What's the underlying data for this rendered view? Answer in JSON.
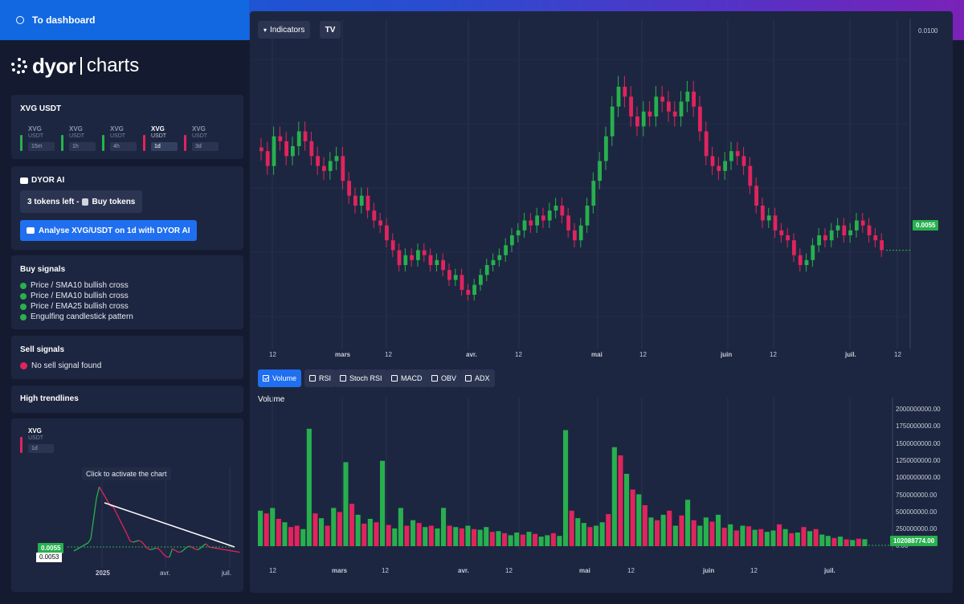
{
  "topbar": {
    "dashboard_label": "To dashboard"
  },
  "logo": {
    "brand": "dyor",
    "sub": "charts"
  },
  "pair_card": {
    "title": "XVG USDT",
    "timeframes": [
      {
        "symbol": "XVG",
        "quote": "USDT",
        "label": "15m",
        "color": "#2ab04f",
        "active": false
      },
      {
        "symbol": "XVG",
        "quote": "USDT",
        "label": "1h",
        "color": "#2ab04f",
        "active": false
      },
      {
        "symbol": "XVG",
        "quote": "USDT",
        "label": "4h",
        "color": "#2ab04f",
        "active": false
      },
      {
        "symbol": "XVG",
        "quote": "USDT",
        "label": "1d",
        "color": "#e0245e",
        "active": true
      },
      {
        "symbol": "XVG",
        "quote": "USDT",
        "label": "3d",
        "color": "#e0245e",
        "active": false
      }
    ]
  },
  "ai_card": {
    "title": "DYOR AI",
    "tokens_label": "3 tokens left -",
    "buy_tokens_label": "Buy tokens",
    "analyse_label": "Analyse XVG/USDT on 1d with DYOR AI"
  },
  "buy_signals": {
    "title": "Buy signals",
    "items": [
      "Price / SMA10 bullish cross",
      "Price / EMA10 bullish cross",
      "Price / EMA25 bullish cross",
      "Engulfing candlestick pattern"
    ]
  },
  "sell_signals": {
    "title": "Sell signals",
    "items": [
      "No sell signal found"
    ]
  },
  "trendlines": {
    "title": "High trendlines"
  },
  "mini_chart": {
    "symbol": "XVG",
    "quote": "USDT",
    "timeframe": "1d",
    "tooltip": "Click to activate the chart",
    "price_label": "0.0055",
    "low_label": "0.0053",
    "x_labels": [
      "2025",
      "avr.",
      "juil."
    ]
  },
  "toolbar": {
    "indicators_label": "Indicators",
    "tv_logo": "TV"
  },
  "price_chart": {
    "last_price_label": "0.0055",
    "top_price_label": "0.0100",
    "x_labels": [
      "12",
      "mars",
      "12",
      "avr.",
      "12",
      "mai",
      "12",
      "juin",
      "12",
      "juil.",
      "12"
    ]
  },
  "indicator_toggles": [
    {
      "label": "Volume",
      "checked": true
    },
    {
      "label": "RSI",
      "checked": false
    },
    {
      "label": "Stoch RSI",
      "checked": false
    },
    {
      "label": "MACD",
      "checked": false
    },
    {
      "label": "OBV",
      "checked": false
    },
    {
      "label": "ADX",
      "checked": false
    }
  ],
  "volume_chart": {
    "title": "Volume",
    "y_labels": [
      "2000000000.00",
      "1750000000.00",
      "1500000000.00",
      "1250000000.00",
      "1000000000.00",
      "750000000.00",
      "500000000.00",
      "250000000.00",
      "0.00"
    ],
    "last_volume_label": "102088774.00",
    "x_labels": [
      "12",
      "mars",
      "12",
      "avr.",
      "12",
      "mai",
      "12",
      "juin",
      "12",
      "juil."
    ]
  },
  "colors": {
    "up": "#27b04e",
    "down": "#e0245e",
    "accent": "#1f6ff0",
    "panel": "#1d2640"
  },
  "chart_data": [
    {
      "type": "candlestick",
      "title": "",
      "x_labels": [
        "12",
        "mars",
        "12",
        "avr.",
        "12",
        "mai",
        "12",
        "juin",
        "12",
        "juil.",
        "12"
      ],
      "y_labels": [
        "0.0100",
        "0.0055"
      ],
      "close": [
        0.0075,
        0.0072,
        0.0078,
        0.0077,
        0.0074,
        0.0076,
        0.0079,
        0.0077,
        0.0074,
        0.0072,
        0.0071,
        0.0073,
        0.0074,
        0.0069,
        0.0066,
        0.0064,
        0.0066,
        0.0063,
        0.0061,
        0.006,
        0.0057,
        0.0055,
        0.0052,
        0.0054,
        0.0053,
        0.0055,
        0.0054,
        0.0052,
        0.0053,
        0.0051,
        0.0049,
        0.005,
        0.0047,
        0.0046,
        0.0048,
        0.005,
        0.0052,
        0.0053,
        0.0054,
        0.0056,
        0.0058,
        0.0059,
        0.0061,
        0.006,
        0.0062,
        0.0061,
        0.0063,
        0.0064,
        0.0062,
        0.0059,
        0.0057,
        0.006,
        0.0064,
        0.0069,
        0.0073,
        0.0078,
        0.0084,
        0.0088,
        0.0086,
        0.0082,
        0.008,
        0.0083,
        0.0082,
        0.0086,
        0.0085,
        0.0083,
        0.0082,
        0.0085,
        0.0087,
        0.0084,
        0.0079,
        0.0074,
        0.0072,
        0.0071,
        0.0073,
        0.0075,
        0.0074,
        0.0072,
        0.0068,
        0.0064,
        0.0061,
        0.0062,
        0.0059,
        0.0058,
        0.0057,
        0.0054,
        0.0052,
        0.0053,
        0.0056,
        0.0058,
        0.0057,
        0.0059,
        0.006,
        0.0058,
        0.0059,
        0.0061,
        0.006,
        0.0058,
        0.0057,
        0.0055
      ]
    },
    {
      "type": "bar",
      "title": "Volume",
      "y_labels": [
        "2000000000.00",
        "1750000000.00",
        "1500000000.00",
        "1250000000.00",
        "1000000000.00",
        "750000000.00",
        "500000000.00",
        "250000000.00",
        "0.00"
      ],
      "ylim": [
        0,
        2000000000
      ],
      "last_value": 102088774,
      "values": [
        520,
        480,
        560,
        400,
        350,
        280,
        300,
        250,
        1720,
        480,
        410,
        300,
        560,
        500,
        1230,
        620,
        460,
        330,
        400,
        350,
        1250,
        310,
        260,
        560,
        300,
        380,
        340,
        280,
        300,
        260,
        560,
        300,
        280,
        260,
        300,
        250,
        240,
        280,
        210,
        220,
        190,
        160,
        200,
        170,
        210,
        180,
        140,
        160,
        190,
        150,
        1700,
        520,
        410,
        340,
        280,
        300,
        350,
        470,
        1450,
        1330,
        1060,
        830,
        760,
        600,
        420,
        380,
        460,
        520,
        300,
        450,
        680,
        380,
        300,
        420,
        360,
        460,
        270,
        320,
        230,
        300,
        290,
        240,
        250,
        210,
        230,
        320,
        250,
        190,
        200,
        280,
        220,
        250,
        170,
        150,
        120,
        140,
        100,
        90,
        110,
        102
      ],
      "up": [
        true,
        false,
        true,
        false,
        true,
        false,
        false,
        true,
        true,
        false,
        true,
        false,
        true,
        false,
        true,
        false,
        true,
        false,
        true,
        false,
        true,
        false,
        true,
        true,
        false,
        true,
        false,
        true,
        false,
        true,
        true,
        false,
        true,
        false,
        true,
        false,
        true,
        true,
        false,
        true,
        false,
        true,
        true,
        false,
        true,
        false,
        true,
        true,
        false,
        true,
        true,
        false,
        true,
        true,
        false,
        true,
        true,
        false,
        true,
        false,
        true,
        false,
        true,
        false,
        true,
        false,
        true,
        false,
        true,
        false,
        true,
        false,
        true,
        true,
        false,
        true,
        false,
        true,
        false,
        true,
        false,
        true,
        false,
        true,
        true,
        false,
        true,
        false,
        true,
        false,
        true,
        false,
        true,
        true,
        false,
        true,
        false,
        true,
        false,
        true
      ]
    }
  ]
}
